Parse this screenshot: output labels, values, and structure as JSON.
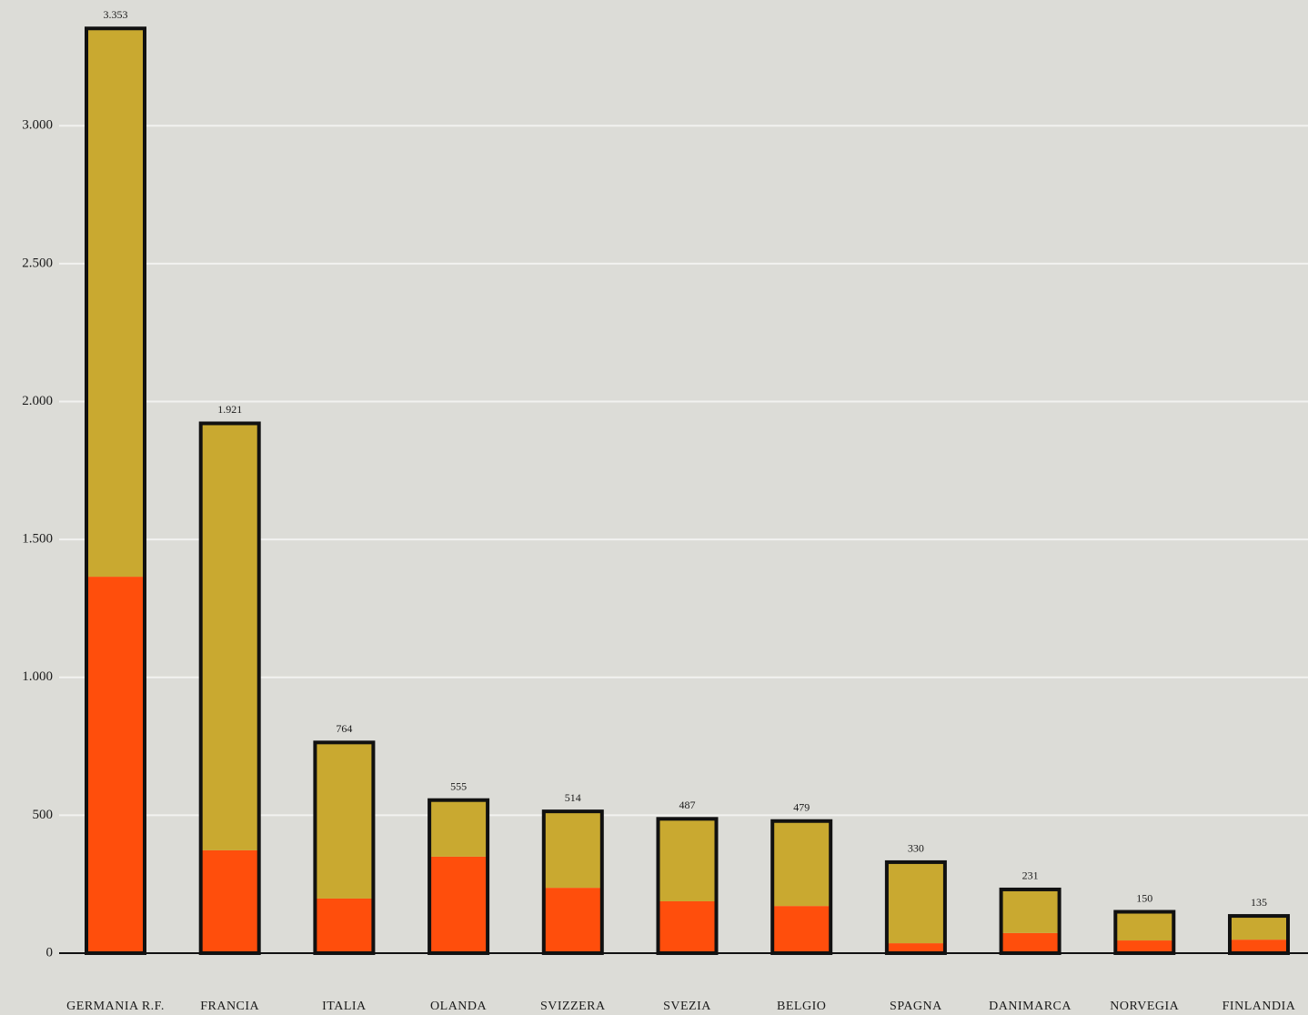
{
  "chart_data": {
    "type": "stacked_bar",
    "categories": [
      "GERMANIA R.F.",
      "FRANCIA",
      "ITALIA",
      "OLANDA",
      "SVIZZERA",
      "SVEZIA",
      "BELGIO",
      "SPAGNA",
      "DANIMARCA",
      "NORVEGIA",
      "FINLANDIA"
    ],
    "series": [
      {
        "color": "#ff4e0c",
        "values": [
          1365,
          373,
          198,
          350,
          237,
          188,
          171,
          36,
          73,
          46,
          49
        ]
      },
      {
        "color": "#c9a930",
        "values": [
          1988,
          1548,
          566,
          205,
          277,
          299,
          308,
          294,
          158,
          104,
          86
        ]
      }
    ],
    "totals": {
      "values": [
        3353,
        1921,
        764,
        555,
        514,
        487,
        479,
        330,
        231,
        150,
        135
      ],
      "value_labels": [
        "3.353",
        "1.921",
        "764",
        "555",
        "514",
        "487",
        "479",
        "330",
        "231",
        "150",
        "135"
      ]
    },
    "ylim": [
      0,
      3400
    ],
    "yticks": [
      0,
      500,
      {
        "value": 1000,
        "label": "1.000"
      },
      {
        "value": 1500,
        "label": "1.500"
      },
      {
        "value": 2000,
        "label": "2.000"
      },
      {
        "value": 2500,
        "label": "2.500"
      },
      {
        "value": 3000,
        "label": "3.000"
      }
    ],
    "grid": true
  }
}
